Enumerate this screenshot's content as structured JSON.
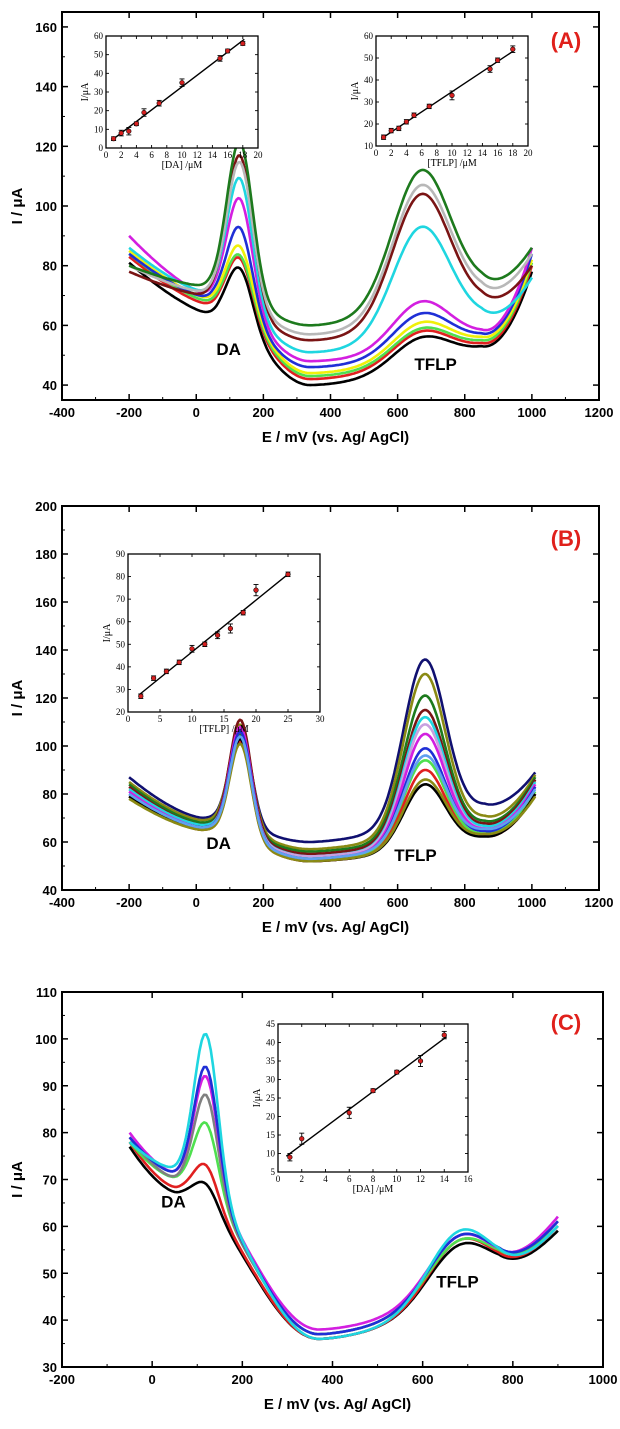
{
  "colors": {
    "label_red": "#e0201b",
    "point_red": "#d62020",
    "green": "#1d7a1d",
    "grey": "#b8b8b8",
    "maroon": "#7a1414",
    "cyan": "#1fd6e0",
    "magenta": "#d31fe0",
    "blue": "#1f2fd6",
    "yellow": "#f0f00a",
    "lime": "#4fe04f",
    "olive": "#8a8a14",
    "navy": "#101070",
    "black": "#000000",
    "red": "#e02020",
    "lavender": "#c8a0e0",
    "sky": "#60a0f0"
  },
  "chart_data": [
    {
      "type": "line",
      "panel_label": "(A)",
      "xlabel": "E / mV (vs. Ag/ AgCl)",
      "ylabel": "I / μA",
      "xlim": [
        -400,
        1200
      ],
      "ylim": [
        35,
        165
      ],
      "xticks": [
        -400,
        -200,
        0,
        200,
        400,
        600,
        800,
        1000,
        1200
      ],
      "yticks": [
        40,
        60,
        80,
        100,
        120,
        140,
        160
      ],
      "x_range": [
        -200,
        1000
      ],
      "annotations": [
        {
          "text": "DA",
          "x": 60,
          "y": 50
        },
        {
          "text": "TFLP",
          "x": 650,
          "y": 45
        }
      ],
      "series": [
        {
          "color": "#000000",
          "start": 81,
          "pre_dip": 63,
          "dip_x": 60,
          "peak1": 67,
          "valley": 40,
          "peak2": 56,
          "post_min": 52,
          "end": 78
        },
        {
          "color": "#e02020",
          "start": 83,
          "pre_dip": 66,
          "dip_x": 60,
          "peak1": 70,
          "valley": 42,
          "peak2": 58,
          "post_min": 53,
          "end": 80
        },
        {
          "color": "#4fe04f",
          "start": 84,
          "pre_dip": 67,
          "dip_x": 60,
          "peak1": 71,
          "valley": 43,
          "peak2": 59,
          "post_min": 54,
          "end": 81
        },
        {
          "color": "#f0f00a",
          "start": 85,
          "pre_dip": 68,
          "dip_x": 60,
          "peak1": 74,
          "valley": 44,
          "peak2": 61,
          "post_min": 55,
          "end": 82
        },
        {
          "color": "#1f2fd6",
          "start": 84,
          "pre_dip": 69,
          "dip_x": 40,
          "peak1": 82,
          "valley": 46,
          "peak2": 64,
          "post_min": 56,
          "end": 84
        },
        {
          "color": "#d31fe0",
          "start": 90,
          "pre_dip": 70,
          "dip_x": 40,
          "peak1": 92,
          "valley": 48,
          "peak2": 68,
          "post_min": 57,
          "end": 86
        },
        {
          "color": "#1fd6e0",
          "start": 86,
          "pre_dip": 71,
          "dip_x": 30,
          "peak1": 100,
          "valley": 51,
          "peak2": 93,
          "post_min": 62,
          "end": 76
        },
        {
          "color": "#7a1414",
          "start": 78,
          "pre_dip": 70,
          "dip_x": 30,
          "peak1": 109,
          "valley": 55,
          "peak2": 104,
          "post_min": 67,
          "end": 80
        },
        {
          "color": "#b8b8b8",
          "start": 80,
          "pre_dip": 71,
          "dip_x": 30,
          "peak1": 107,
          "valley": 57,
          "peak2": 107,
          "post_min": 70,
          "end": 84
        },
        {
          "color": "#1d7a1d",
          "start": 80,
          "pre_dip": 73,
          "dip_x": 30,
          "peak1": 114,
          "valley": 60,
          "peak2": 112,
          "post_min": 73,
          "end": 86
        }
      ],
      "insets": [
        {
          "xlabel": "[DA] /μM",
          "ylabel": "I/μA",
          "xlim": [
            0,
            20
          ],
          "ylim": [
            0,
            60
          ],
          "xticks": [
            0,
            2,
            4,
            6,
            8,
            10,
            12,
            14,
            16,
            18,
            20
          ],
          "yticks": [
            0,
            10,
            20,
            30,
            40,
            50,
            60
          ],
          "x": [
            1,
            2,
            3,
            4,
            5,
            7,
            10,
            15,
            16,
            18
          ],
          "y": [
            5,
            8,
            9,
            13,
            19,
            24,
            35,
            48,
            52,
            56
          ],
          "err": [
            1,
            1.5,
            2,
            1,
            2,
            1.5,
            2,
            1.5,
            1,
            1
          ]
        },
        {
          "xlabel": "[TFLP] /μM",
          "ylabel": "I/μA",
          "xlim": [
            0,
            20
          ],
          "ylim": [
            10,
            60
          ],
          "xticks": [
            0,
            2,
            4,
            6,
            8,
            10,
            12,
            14,
            16,
            18,
            20
          ],
          "yticks": [
            10,
            20,
            30,
            40,
            50,
            60
          ],
          "x": [
            1,
            2,
            3,
            4,
            5,
            7,
            10,
            15,
            16,
            18
          ],
          "y": [
            14,
            17,
            18,
            21,
            24,
            28,
            33,
            45,
            49,
            54
          ],
          "err": [
            1,
            1,
            1,
            1,
            1,
            1,
            2,
            1.5,
            1,
            1.5
          ]
        }
      ]
    },
    {
      "type": "line",
      "panel_label": "(B)",
      "xlabel": "E / mV (vs. Ag/ AgCl)",
      "ylabel": "I / μA",
      "xlim": [
        -400,
        1200
      ],
      "ylim": [
        40,
        200
      ],
      "xticks": [
        -400,
        -200,
        0,
        200,
        400,
        600,
        800,
        1000,
        1200
      ],
      "yticks": [
        40,
        60,
        80,
        100,
        120,
        140,
        160,
        180,
        200
      ],
      "x_range": [
        -200,
        1010
      ],
      "annotations": [
        {
          "text": "DA",
          "x": 30,
          "y": 57
        },
        {
          "text": "TFLP",
          "x": 590,
          "y": 52
        }
      ],
      "series": [
        {
          "color": "#101070",
          "start": 87,
          "pre_dip": 70,
          "peak1": 107,
          "valley": 60,
          "peak2": 136,
          "post_min": 75,
          "end": 89
        },
        {
          "color": "#8a8a14",
          "start": 85,
          "pre_dip": 69,
          "peak1": 109,
          "valley": 57,
          "peak2": 130,
          "post_min": 70,
          "end": 88
        },
        {
          "color": "#1d7a1d",
          "start": 84,
          "pre_dip": 68,
          "peak1": 105,
          "valley": 56,
          "peak2": 121,
          "post_min": 68,
          "end": 87
        },
        {
          "color": "#7a1414",
          "start": 83,
          "pre_dip": 67,
          "peak1": 111,
          "valley": 55,
          "peak2": 115,
          "post_min": 67,
          "end": 86
        },
        {
          "color": "#1fd6e0",
          "start": 82,
          "pre_dip": 67,
          "peak1": 104,
          "valley": 54,
          "peak2": 112,
          "post_min": 66,
          "end": 85
        },
        {
          "color": "#c8a0e0",
          "start": 81,
          "pre_dip": 66,
          "peak1": 106,
          "valley": 54,
          "peak2": 109,
          "post_min": 65,
          "end": 84
        },
        {
          "color": "#d31fe0",
          "start": 81,
          "pre_dip": 66,
          "peak1": 108,
          "valley": 53,
          "peak2": 105,
          "post_min": 65,
          "end": 84
        },
        {
          "color": "#1f2fd6",
          "start": 80,
          "pre_dip": 66,
          "peak1": 106,
          "valley": 53,
          "peak2": 99,
          "post_min": 64,
          "end": 83
        },
        {
          "color": "#4fe04f",
          "start": 79,
          "pre_dip": 65,
          "peak1": 103,
          "valley": 53,
          "peak2": 94,
          "post_min": 63,
          "end": 81
        },
        {
          "color": "#e02020",
          "start": 79,
          "pre_dip": 65,
          "peak1": 102,
          "valley": 52,
          "peak2": 90,
          "post_min": 62,
          "end": 80
        },
        {
          "color": "#000000",
          "start": 79,
          "pre_dip": 66,
          "peak1": 103,
          "valley": 52,
          "peak2": 84,
          "post_min": 62,
          "end": 80
        },
        {
          "color": "#8a8a14",
          "start": 78,
          "pre_dip": 65,
          "peak1": 101,
          "valley": 52,
          "peak2": 86,
          "post_min": 63,
          "end": 79
        },
        {
          "color": "#60a0f0",
          "start": 80,
          "pre_dip": 66,
          "peak1": 104,
          "valley": 53,
          "peak2": 96,
          "post_min": 65,
          "end": 82
        }
      ],
      "insets": [
        {
          "xlabel": "[TFLP] /μM",
          "ylabel": "I/μA",
          "xlim": [
            0,
            30
          ],
          "ylim": [
            20,
            90
          ],
          "xticks": [
            0,
            5,
            10,
            15,
            20,
            25,
            30
          ],
          "yticks": [
            20,
            30,
            40,
            50,
            60,
            70,
            80,
            90
          ],
          "x": [
            2,
            4,
            6,
            8,
            10,
            12,
            14,
            16,
            18,
            20,
            25
          ],
          "y": [
            27,
            35,
            38,
            42,
            48,
            50,
            54,
            57,
            64,
            74,
            81
          ],
          "err": [
            1,
            1,
            1,
            1,
            1.5,
            1,
            1.5,
            2,
            1,
            2.5,
            1
          ]
        }
      ]
    },
    {
      "type": "line",
      "panel_label": "(C)",
      "xlabel": "E / mV (vs. Ag/ AgCl)",
      "ylabel": "I / μA",
      "xlim": [
        -200,
        1000
      ],
      "ylim": [
        30,
        110
      ],
      "xticks": [
        -200,
        0,
        200,
        400,
        600,
        800,
        1000
      ],
      "yticks": [
        30,
        40,
        50,
        60,
        70,
        80,
        90,
        100,
        110
      ],
      "x_range": [
        -50,
        900
      ],
      "annotations": [
        {
          "text": "DA",
          "x": 20,
          "y": 64
        },
        {
          "text": "TFLP",
          "x": 630,
          "y": 47
        }
      ],
      "series": [
        {
          "color": "#000000",
          "start": 77,
          "pre_dip": 67,
          "peak1": 69,
          "valley": 36,
          "peak2": 56,
          "post_min": 49,
          "end": 59
        },
        {
          "color": "#e02020",
          "start": 78,
          "pre_dip": 68,
          "peak1": 73,
          "valley": 36,
          "peak2": 57,
          "post_min": 49,
          "end": 60
        },
        {
          "color": "#4fe04f",
          "start": 78,
          "pre_dip": 70,
          "peak1": 82,
          "valley": 37,
          "peak2": 57,
          "post_min": 50,
          "end": 60
        },
        {
          "color": "#808080",
          "start": 79,
          "pre_dip": 70,
          "peak1": 88,
          "valley": 37,
          "peak2": 58,
          "post_min": 50,
          "end": 61
        },
        {
          "color": "#d31fe0",
          "start": 80,
          "pre_dip": 71,
          "peak1": 92,
          "valley": 38,
          "peak2": 58,
          "post_min": 50,
          "end": 62
        },
        {
          "color": "#1f2fd6",
          "start": 79,
          "pre_dip": 71,
          "peak1": 94,
          "valley": 37,
          "peak2": 58,
          "post_min": 50,
          "end": 61
        },
        {
          "color": "#1fd6e0",
          "start": 78,
          "pre_dip": 72,
          "peak1": 101,
          "valley": 36,
          "peak2": 59,
          "post_min": 49,
          "end": 60
        }
      ],
      "insets": [
        {
          "xlabel": "[DA] /μM",
          "ylabel": "I/μA",
          "xlim": [
            0,
            16
          ],
          "ylim": [
            5,
            45
          ],
          "xticks": [
            0,
            2,
            4,
            6,
            8,
            10,
            12,
            14,
            16
          ],
          "yticks": [
            5,
            10,
            15,
            20,
            25,
            30,
            35,
            40,
            45
          ],
          "x": [
            1,
            2,
            6,
            8,
            10,
            12,
            14
          ],
          "y": [
            9,
            14,
            21,
            27,
            32,
            35,
            42
          ],
          "err": [
            1,
            1.5,
            1.5,
            0.5,
            0.5,
            1.5,
            1
          ]
        }
      ]
    }
  ]
}
